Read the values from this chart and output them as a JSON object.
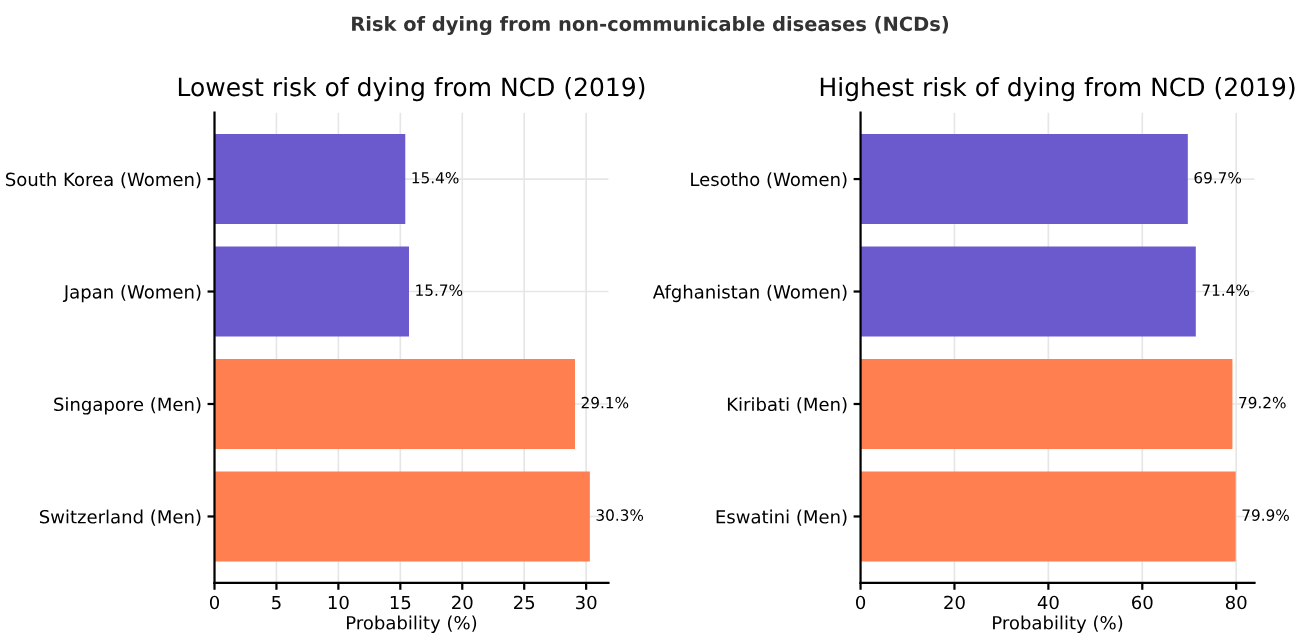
{
  "chart_data": [
    {
      "type": "bar",
      "orientation": "horizontal",
      "title": "Lowest risk of dying from NCD (2019)",
      "xlabel": "Probability (%)",
      "annotations": [
        "Risk of dying from non-communicable diseases (NCDs)"
      ],
      "categories": [
        "South Korea (Women)",
        "Japan (Women)",
        "Singapore (Men)",
        "Switzerland (Men)"
      ],
      "values": [
        15.4,
        15.7,
        29.1,
        30.3
      ],
      "colors": [
        "#6a5acd",
        "#6a5acd",
        "#ff7f50",
        "#ff7f50"
      ],
      "value_labels": [
        "15.4%",
        "15.7%",
        "29.1%",
        "30.3%"
      ],
      "xlim": [
        0,
        31.8
      ],
      "xticks": [
        0,
        5,
        10,
        15,
        20,
        25,
        30
      ],
      "grid": true
    },
    {
      "type": "bar",
      "orientation": "horizontal",
      "title": "Highest risk of dying from NCD (2019)",
      "xlabel": "Probability (%)",
      "categories": [
        "Lesotho (Women)",
        "Afghanistan (Women)",
        "Kiribati (Men)",
        "Eswatini (Men)"
      ],
      "values": [
        69.7,
        71.4,
        79.2,
        79.9
      ],
      "colors": [
        "#6a5acd",
        "#6a5acd",
        "#ff7f50",
        "#ff7f50"
      ],
      "value_labels": [
        "69.7%",
        "71.4%",
        "79.2%",
        "79.9%"
      ],
      "xlim": [
        0,
        83.9
      ],
      "xticks": [
        0,
        20,
        40,
        60,
        80
      ],
      "grid": true
    }
  ]
}
